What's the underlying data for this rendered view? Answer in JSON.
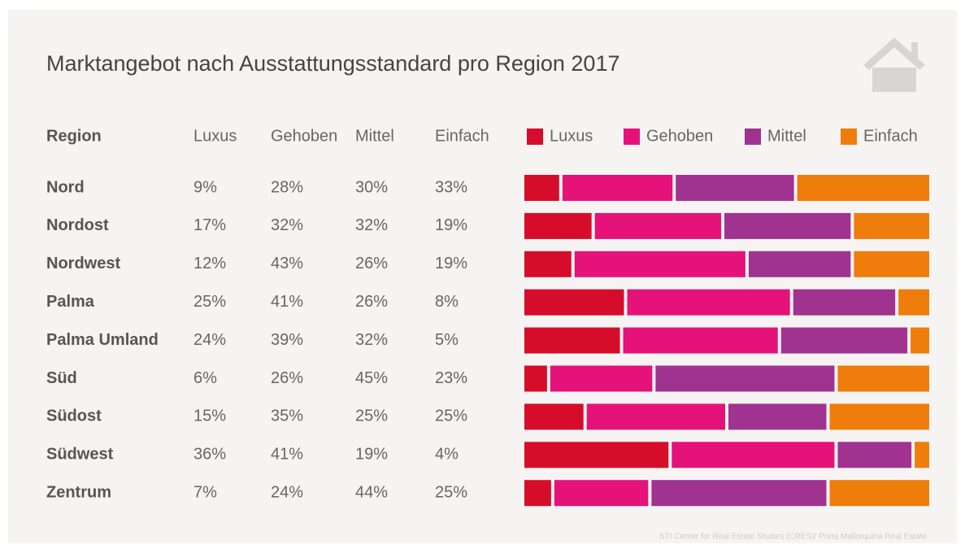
{
  "chart_data": {
    "type": "bar",
    "orientation": "horizontal",
    "stacked": true,
    "title": "Marktangebot nach Ausstattungsstandard pro Region 2017",
    "region_label": "Region",
    "source": "STI Center for Real Estate Studies (CRES)/ Porta Mallorquina Real Estate",
    "categories": [
      "Nord",
      "Nordost",
      "Nordwest",
      "Palma",
      "Palma Umland",
      "Süd",
      "Südost",
      "Südwest",
      "Zentrum"
    ],
    "xlim": [
      0,
      100
    ],
    "series": [
      {
        "name": "Luxus",
        "color": "#d50d2a",
        "values": [
          9,
          17,
          12,
          25,
          24,
          6,
          15,
          36,
          7
        ],
        "value_labels": [
          "9%",
          "17%",
          "12%",
          "25%",
          "24%",
          "6%",
          "15%",
          "36%",
          "7%"
        ]
      },
      {
        "name": "Gehoben",
        "color": "#e5127a",
        "values": [
          28,
          32,
          43,
          41,
          39,
          26,
          35,
          41,
          24
        ],
        "value_labels": [
          "28%",
          "32%",
          "43%",
          "41%",
          "39%",
          "26%",
          "35%",
          "41%",
          "24%"
        ]
      },
      {
        "name": "Mittel",
        "color": "#a0338f",
        "values": [
          30,
          32,
          26,
          26,
          32,
          45,
          25,
          19,
          44
        ],
        "value_labels": [
          "30%",
          "32%",
          "26%",
          "26%",
          "32%",
          "45%",
          "25%",
          "19%",
          "44%"
        ]
      },
      {
        "name": "Einfach",
        "color": "#ee7d0c",
        "values": [
          33,
          19,
          19,
          8,
          5,
          23,
          25,
          4,
          25
        ],
        "value_labels": [
          "33%",
          "19%",
          "19%",
          "8%",
          "5%",
          "23%",
          "25%",
          "4%",
          "25%"
        ]
      }
    ]
  }
}
